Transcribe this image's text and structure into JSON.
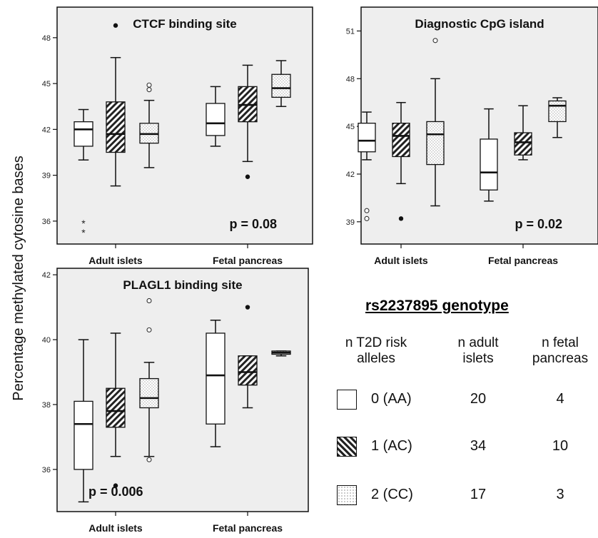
{
  "y_axis_label": "Percentage methylated cytosine bases",
  "colors": {
    "panel_bg": "#eeeeee",
    "border": "#111111",
    "outlier": "#111111"
  },
  "chart_data": [
    {
      "type": "boxplot",
      "title": "CTCF binding site",
      "p_value": "p = 0.08",
      "categories": [
        "Adult islets",
        "Fetal pancreas"
      ],
      "yticks": [
        36,
        39,
        42,
        45,
        48
      ],
      "ylim": [
        34.5,
        50
      ],
      "groups": [
        {
          "genotype": "0 (AA)",
          "category": "Adult islets",
          "min": 40.0,
          "q1": 40.9,
          "median": 42.0,
          "q3": 42.5,
          "max": 43.3,
          "outliers": [
            {
              "v": 35.9,
              "s": "star"
            },
            {
              "v": 35.3,
              "s": "star"
            }
          ]
        },
        {
          "genotype": "1 (AC)",
          "category": "Adult islets",
          "min": 38.3,
          "q1": 40.5,
          "median": 41.7,
          "q3": 43.8,
          "max": 46.7,
          "outliers": [
            {
              "v": 48.8,
              "s": "filled"
            }
          ]
        },
        {
          "genotype": "2 (CC)",
          "category": "Adult islets",
          "min": 39.5,
          "q1": 41.1,
          "median": 41.7,
          "q3": 42.4,
          "max": 43.9,
          "outliers": [
            {
              "v": 44.9,
              "s": "open"
            },
            {
              "v": 44.6,
              "s": "open"
            }
          ]
        },
        {
          "genotype": "0 (AA)",
          "category": "Fetal pancreas",
          "min": 40.9,
          "q1": 41.6,
          "median": 42.4,
          "q3": 43.7,
          "max": 44.8,
          "outliers": []
        },
        {
          "genotype": "1 (AC)",
          "category": "Fetal pancreas",
          "min": 39.9,
          "q1": 42.5,
          "median": 43.6,
          "q3": 44.8,
          "max": 46.2,
          "outliers": [
            {
              "v": 38.9,
              "s": "filled"
            }
          ]
        },
        {
          "genotype": "2 (CC)",
          "category": "Fetal pancreas",
          "min": 43.5,
          "q1": 44.1,
          "median": 44.7,
          "q3": 45.6,
          "max": 46.5,
          "outliers": []
        }
      ]
    },
    {
      "type": "boxplot",
      "title": "Diagnostic CpG island",
      "p_value": "p = 0.02",
      "categories": [
        "Adult islets",
        "Fetal pancreas"
      ],
      "yticks": [
        39,
        42,
        45,
        48,
        51
      ],
      "ylim": [
        37.6,
        52.5
      ],
      "groups": [
        {
          "genotype": "0 (AA)",
          "category": "Adult islets",
          "min": 42.9,
          "q1": 43.4,
          "median": 44.1,
          "q3": 45.2,
          "max": 45.9,
          "outliers": [
            {
              "v": 39.7,
              "s": "open"
            },
            {
              "v": 39.2,
              "s": "open"
            }
          ]
        },
        {
          "genotype": "1 (AC)",
          "category": "Adult islets",
          "min": 41.4,
          "q1": 43.1,
          "median": 44.4,
          "q3": 45.2,
          "max": 46.5,
          "outliers": [
            {
              "v": 39.2,
              "s": "filled"
            }
          ]
        },
        {
          "genotype": "2 (CC)",
          "category": "Adult islets",
          "min": 40.0,
          "q1": 42.6,
          "median": 44.5,
          "q3": 45.3,
          "max": 48.0,
          "outliers": [
            {
              "v": 50.4,
              "s": "open"
            }
          ]
        },
        {
          "genotype": "0 (AA)",
          "category": "Fetal pancreas",
          "min": 40.3,
          "q1": 41.0,
          "median": 42.1,
          "q3": 44.2,
          "max": 46.1,
          "outliers": []
        },
        {
          "genotype": "1 (AC)",
          "category": "Fetal pancreas",
          "min": 42.9,
          "q1": 43.2,
          "median": 44.0,
          "q3": 44.6,
          "max": 46.3,
          "outliers": []
        },
        {
          "genotype": "2 (CC)",
          "category": "Fetal pancreas",
          "min": 44.3,
          "q1": 45.3,
          "median": 46.3,
          "q3": 46.6,
          "max": 46.8,
          "outliers": []
        }
      ]
    },
    {
      "type": "boxplot",
      "title": "PLAGL1 binding site",
      "p_value": "p = 0.006",
      "categories": [
        "Adult islets",
        "Fetal pancreas"
      ],
      "yticks": [
        36,
        38,
        40,
        42
      ],
      "ylim": [
        34.7,
        42.2
      ],
      "groups": [
        {
          "genotype": "0 (AA)",
          "category": "Adult islets",
          "min": 35.0,
          "q1": 36.0,
          "median": 37.4,
          "q3": 38.1,
          "max": 40.0,
          "outliers": []
        },
        {
          "genotype": "1 (AC)",
          "category": "Adult islets",
          "min": 36.4,
          "q1": 37.3,
          "median": 37.8,
          "q3": 38.5,
          "max": 40.2,
          "outliers": [
            {
              "v": 35.5,
              "s": "filled"
            }
          ]
        },
        {
          "genotype": "2 (CC)",
          "category": "Adult islets",
          "min": 36.4,
          "q1": 37.9,
          "median": 38.2,
          "q3": 38.8,
          "max": 39.3,
          "outliers": [
            {
              "v": 41.2,
              "s": "open"
            },
            {
              "v": 40.3,
              "s": "open"
            },
            {
              "v": 36.3,
              "s": "open"
            }
          ]
        },
        {
          "genotype": "0 (AA)",
          "category": "Fetal pancreas",
          "min": 36.7,
          "q1": 37.4,
          "median": 38.9,
          "q3": 40.2,
          "max": 40.6,
          "outliers": []
        },
        {
          "genotype": "1 (AC)",
          "category": "Fetal pancreas",
          "min": 37.9,
          "q1": 38.6,
          "median": 39.0,
          "q3": 39.5,
          "max": 39.5,
          "outliers": [
            {
              "v": 41.0,
              "s": "filled"
            }
          ]
        },
        {
          "genotype": "2 (CC)",
          "category": "Fetal pancreas",
          "min": 39.5,
          "q1": 39.55,
          "median": 39.6,
          "q3": 39.65,
          "max": 39.65,
          "outliers": []
        }
      ]
    }
  ],
  "legend": {
    "title": "rs2237895 genotype",
    "headers": [
      "n T2D risk alleles",
      "n adult islets",
      "n fetal pancreas"
    ],
    "rows": [
      {
        "genotype": "0 (AA)",
        "pattern": "none",
        "n_adult": "20",
        "n_fetal": "4"
      },
      {
        "genotype": "1 (AC)",
        "pattern": "hatch",
        "n_adult": "34",
        "n_fetal": "10"
      },
      {
        "genotype": "2 (CC)",
        "pattern": "dots",
        "n_adult": "17",
        "n_fetal": "3"
      }
    ]
  }
}
